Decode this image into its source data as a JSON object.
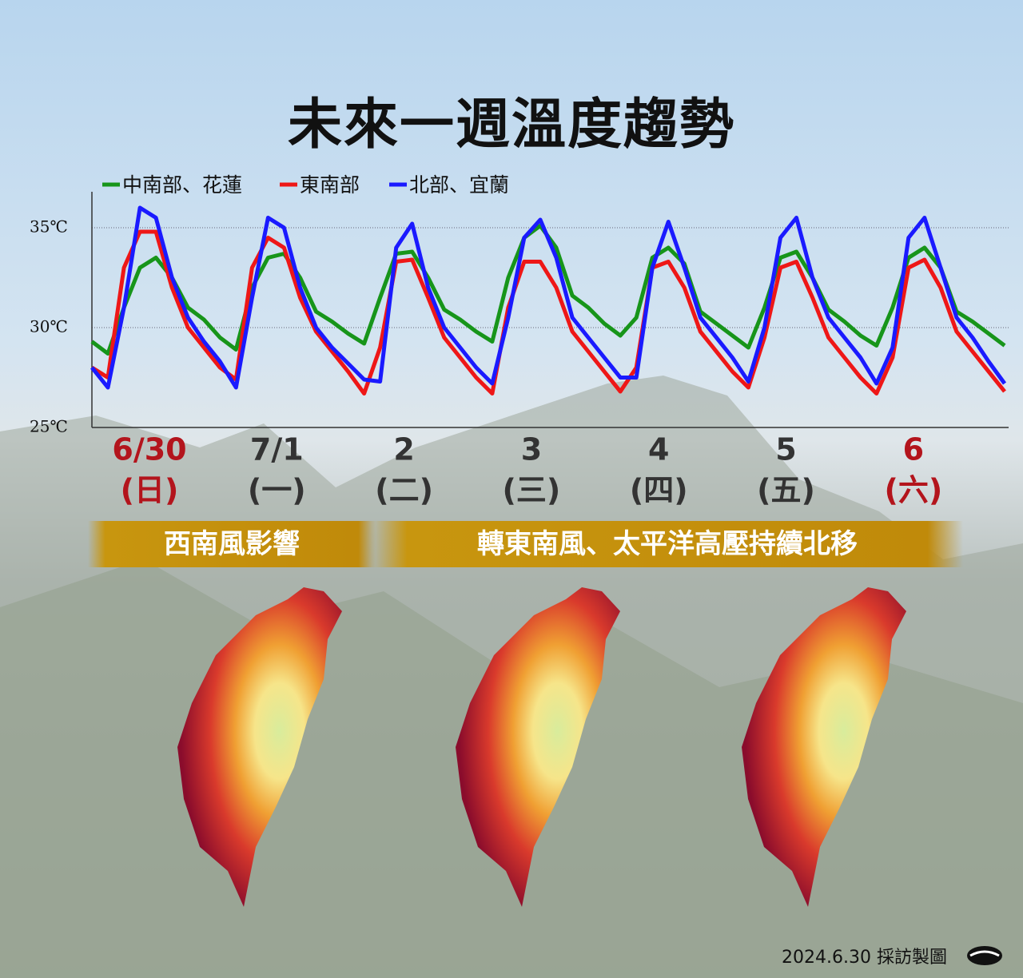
{
  "title": "未來一週溫度趨勢",
  "chart_data": {
    "type": "line",
    "series": [
      {
        "name": "中南部、花蓮",
        "color": "#17951a",
        "values": [
          29.3,
          28.7,
          31.0,
          33.0,
          33.5,
          32.5,
          31.0,
          30.4,
          29.5,
          28.9,
          32.0,
          33.5,
          33.7,
          32.5,
          30.8,
          30.3,
          29.7,
          29.2,
          31.5,
          33.7,
          33.8,
          32.5,
          30.9,
          30.4,
          29.8,
          29.3,
          32.5,
          34.5,
          35.1,
          34.0,
          31.6,
          31.0,
          30.2,
          29.6,
          30.5,
          33.5,
          34.0,
          33.2,
          30.8,
          30.2,
          29.6,
          29.0,
          31.0,
          33.5,
          33.8,
          32.5,
          30.9,
          30.3,
          29.6,
          29.1,
          31.0,
          33.5,
          34.0,
          33.0,
          30.8,
          30.3,
          29.7,
          29.1
        ]
      },
      {
        "name": "東南部",
        "color": "#ee1717",
        "values": [
          28.0,
          27.5,
          33.0,
          34.8,
          34.8,
          32.0,
          30.0,
          29.0,
          28.0,
          27.4,
          33.0,
          34.5,
          34.0,
          31.5,
          29.8,
          28.8,
          27.8,
          26.7,
          29.0,
          33.3,
          33.4,
          31.5,
          29.5,
          28.5,
          27.5,
          26.7,
          31.0,
          33.3,
          33.3,
          32.0,
          29.8,
          28.8,
          27.8,
          26.8,
          28.0,
          33.0,
          33.3,
          32.0,
          29.8,
          28.8,
          27.8,
          27.0,
          29.5,
          33.0,
          33.3,
          31.5,
          29.5,
          28.5,
          27.5,
          26.7,
          28.5,
          33.0,
          33.4,
          32.0,
          29.8,
          28.8,
          27.8,
          26.8
        ]
      },
      {
        "name": "北部、宜蘭",
        "color": "#1a1aff",
        "values": [
          28.0,
          27.0,
          31.0,
          36.0,
          35.5,
          32.5,
          30.5,
          29.3,
          28.3,
          27.0,
          31.5,
          35.5,
          35.0,
          32.0,
          30.0,
          29.0,
          28.2,
          27.4,
          27.3,
          34.0,
          35.2,
          32.0,
          30.0,
          29.0,
          28.0,
          27.2,
          30.5,
          34.5,
          35.4,
          33.5,
          30.5,
          29.5,
          28.5,
          27.5,
          27.5,
          33.0,
          35.3,
          33.0,
          30.5,
          29.5,
          28.5,
          27.3,
          30.0,
          34.5,
          35.5,
          32.5,
          30.5,
          29.5,
          28.5,
          27.2,
          29.0,
          34.5,
          35.5,
          33.0,
          30.5,
          29.5,
          28.3,
          27.2
        ]
      }
    ],
    "ylim": [
      25,
      36.8
    ],
    "yticks": [
      {
        "value": 25,
        "label": "25℃"
      },
      {
        "value": 30,
        "label": "30℃"
      },
      {
        "value": 35,
        "label": "35℃"
      }
    ],
    "grid": true,
    "days": [
      {
        "date": "6/30",
        "weekday": "(日)",
        "color": "#b3141c"
      },
      {
        "date": "7/1",
        "weekday": "(一)",
        "color": "#333333"
      },
      {
        "date": "2",
        "weekday": "(二)",
        "color": "#333333"
      },
      {
        "date": "3",
        "weekday": "(三)",
        "color": "#333333"
      },
      {
        "date": "4",
        "weekday": "(四)",
        "color": "#333333"
      },
      {
        "date": "5",
        "weekday": "(五)",
        "color": "#333333"
      },
      {
        "date": "6",
        "weekday": "(六)",
        "color": "#b3141c"
      }
    ]
  },
  "banners": [
    "西南風影響",
    "轉東南風、太平洋高壓持續北移"
  ],
  "footer": "2024.6.30 採訪製圖"
}
